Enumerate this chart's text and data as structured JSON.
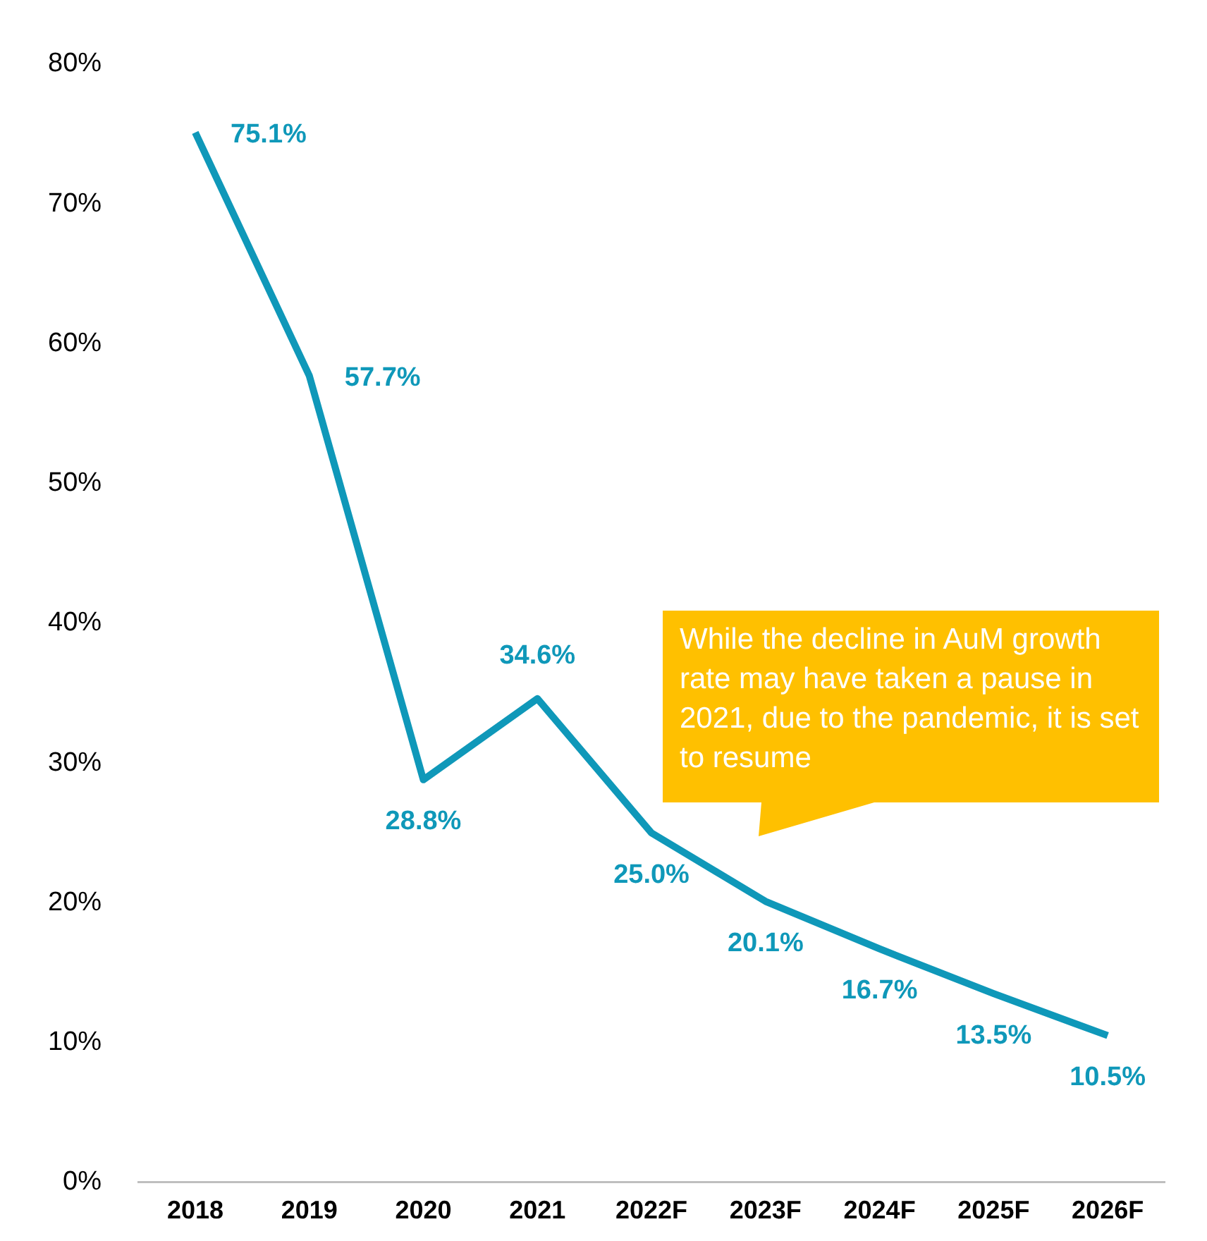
{
  "chart_data": {
    "type": "line",
    "categories": [
      "2018",
      "2019",
      "2020",
      "2021",
      "2022F",
      "2023F",
      "2024F",
      "2025F",
      "2026F"
    ],
    "series": [
      {
        "color": "#0f98b9",
        "values": [
          75.1,
          57.7,
          28.8,
          34.6,
          25.0,
          20.1,
          16.7,
          13.5,
          10.5
        ],
        "value_labels": [
          "75.1%",
          "57.7%",
          "28.8%",
          "34.6%",
          "25.0%",
          "20.1%",
          "16.7%",
          "13.5%",
          "10.5%"
        ]
      }
    ],
    "ylim": [
      0,
      80
    ],
    "yticks": [
      {
        "value": 0,
        "label": "0%"
      },
      {
        "value": 10,
        "label": "10%"
      },
      {
        "value": 20,
        "label": "20%"
      },
      {
        "value": 30,
        "label": "30%"
      },
      {
        "value": 40,
        "label": "40%"
      },
      {
        "value": 50,
        "label": "50%"
      },
      {
        "value": 60,
        "label": "60%"
      },
      {
        "value": 70,
        "label": "70%"
      },
      {
        "value": 80,
        "label": "80%"
      }
    ],
    "grid": false,
    "legend": false,
    "marker": "none",
    "line_style": "solid",
    "annotations": [
      "While the decline in AuM growth rate may have taken a pause in 2021, due to the pandemic, it is set to resume"
    ]
  }
}
